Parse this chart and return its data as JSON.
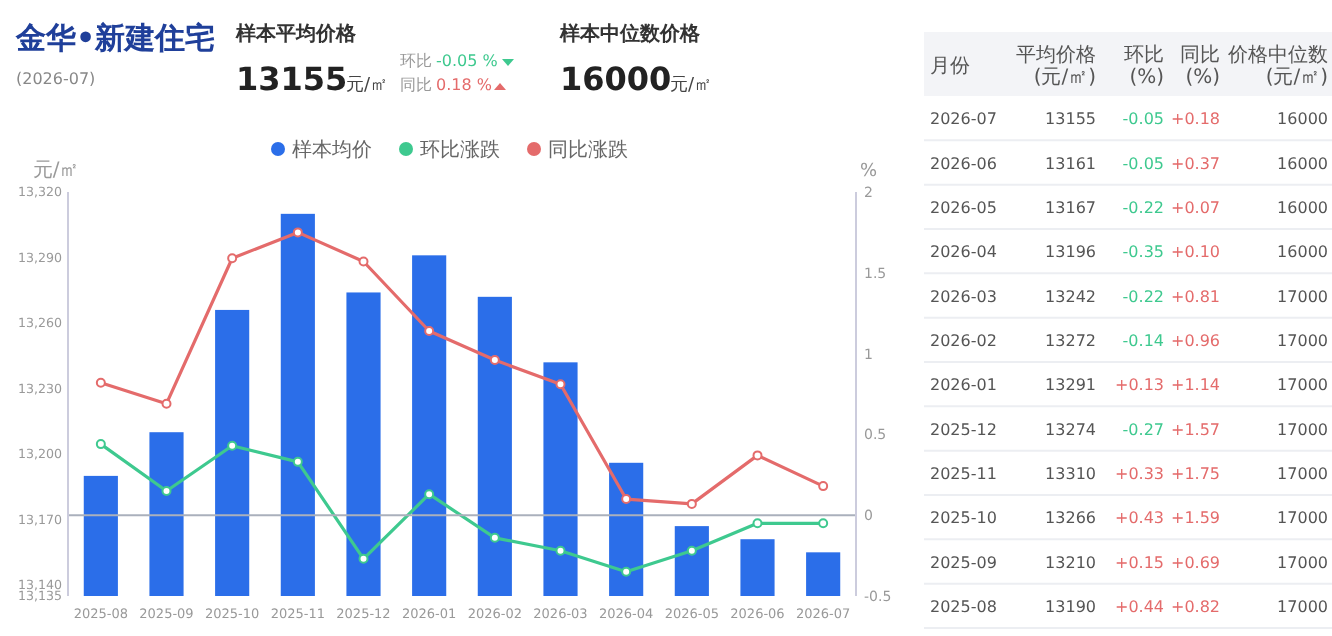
{
  "chart_data": [
    {
      "type": "other",
      "title": "金华•新建住宅",
      "subtitle": "(2026-07)",
      "annotations": [
        "样本平均价格",
        "13155",
        "元/㎡",
        "环比",
        "-0.05 %",
        "同比",
        "0.18 %",
        "样本中位数价格",
        "16000",
        "元/㎡"
      ]
    },
    {
      "type": "bar",
      "categories": [
        "2025-08",
        "2025-09",
        "2025-10",
        "2025-11",
        "2025-12",
        "2026-01",
        "2026-02",
        "2026-03",
        "2026-04",
        "2026-05",
        "2026-06",
        "2026-07"
      ],
      "series": [
        {
          "name": "样本均价",
          "color": "#2b6ee9",
          "values": [
            13190,
            13210,
            13266,
            13310,
            13274,
            13291,
            13272,
            13242,
            13196,
            13167,
            13161,
            13155
          ]
        },
        {
          "name": "环比涨跌",
          "type": "line",
          "axis": "y2",
          "color": "#3ec98f",
          "values": [
            0.44,
            0.15,
            0.43,
            0.33,
            -0.27,
            0.13,
            -0.14,
            -0.22,
            -0.35,
            -0.22,
            -0.05,
            -0.05
          ]
        },
        {
          "name": "同比涨跌",
          "type": "line",
          "axis": "y2",
          "color": "#e46b6b",
          "values": [
            0.82,
            0.69,
            1.59,
            1.75,
            1.57,
            1.14,
            0.96,
            0.81,
            0.1,
            0.07,
            0.37,
            0.18
          ]
        }
      ],
      "ylabel": "元/㎡",
      "y2label": "%",
      "ylim": [
        13135,
        13320
      ],
      "yticks": [
        {
          "value": 13135,
          "label": "13,135"
        },
        {
          "value": 13140,
          "label": "13,140"
        },
        {
          "value": 13170,
          "label": "13,170"
        },
        {
          "value": 13200,
          "label": "13,200"
        },
        {
          "value": 13230,
          "label": "13,230"
        },
        {
          "value": 13260,
          "label": "13,260"
        },
        {
          "value": 13290,
          "label": "13,290"
        },
        {
          "value": 13320,
          "label": "13,320"
        }
      ],
      "y2lim": [
        -0.5,
        2
      ],
      "y2ticks": [
        -0.5,
        0,
        0.5,
        1,
        1.5,
        2
      ],
      "ref_lines": [
        {
          "axis": "y2",
          "value": 0,
          "color": "#aab0bc"
        }
      ],
      "legend": "top",
      "marker": "circle",
      "line_style": "solid"
    },
    {
      "type": "other",
      "xlabel": "月份",
      "categories": [
        "2026-07",
        "2026-06",
        "2026-05",
        "2026-04",
        "2026-03",
        "2026-02",
        "2026-01",
        "2025-12",
        "2025-11",
        "2025-10",
        "2025-09",
        "2025-08"
      ],
      "series": [
        {
          "name": "平均价格(元/㎡)",
          "values": [
            13155,
            13161,
            13167,
            13196,
            13242,
            13272,
            13291,
            13274,
            13310,
            13266,
            13210,
            13190
          ],
          "value_labels": [
            "13155",
            "13161",
            "13167",
            "13196",
            "13242",
            "13272",
            "13291",
            "13274",
            "13310",
            "13266",
            "13210",
            "13190"
          ]
        },
        {
          "name": "环比(%)",
          "values": [
            -0.05,
            -0.05,
            -0.22,
            -0.35,
            -0.22,
            -0.14,
            0.13,
            -0.27,
            0.33,
            0.43,
            0.15,
            0.44
          ],
          "value_labels": [
            "-0.05",
            "-0.05",
            "-0.22",
            "-0.35",
            "-0.22",
            "-0.14",
            "+0.13",
            "-0.27",
            "+0.33",
            "+0.43",
            "+0.15",
            "+0.44"
          ],
          "colors": [
            "#3ec98f",
            "#3ec98f",
            "#3ec98f",
            "#3ec98f",
            "#3ec98f",
            "#3ec98f",
            "#e46b6b",
            "#3ec98f",
            "#e46b6b",
            "#e46b6b",
            "#e46b6b",
            "#e46b6b"
          ]
        },
        {
          "name": "同比(%)",
          "values": [
            0.18,
            0.37,
            0.07,
            0.1,
            0.81,
            0.96,
            1.14,
            1.57,
            1.75,
            1.59,
            0.69,
            0.82
          ],
          "value_labels": [
            "+0.18",
            "+0.37",
            "+0.07",
            "+0.10",
            "+0.81",
            "+0.96",
            "+1.14",
            "+1.57",
            "+1.75",
            "+1.59",
            "+0.69",
            "+0.82"
          ],
          "colors": [
            "#e46b6b",
            "#e46b6b",
            "#e46b6b",
            "#e46b6b",
            "#e46b6b",
            "#e46b6b",
            "#e46b6b",
            "#e46b6b",
            "#e46b6b",
            "#e46b6b",
            "#e46b6b",
            "#e46b6b"
          ]
        },
        {
          "name": "价格中位数(元/㎡)",
          "values": [
            16000,
            16000,
            16000,
            16000,
            17000,
            17000,
            17000,
            17000,
            17000,
            17000,
            17000,
            17000
          ],
          "value_labels": [
            "16000",
            "16000",
            "16000",
            "16000",
            "17000",
            "17000",
            "17000",
            "17000",
            "17000",
            "17000",
            "17000",
            "17000"
          ]
        }
      ]
    }
  ]
}
